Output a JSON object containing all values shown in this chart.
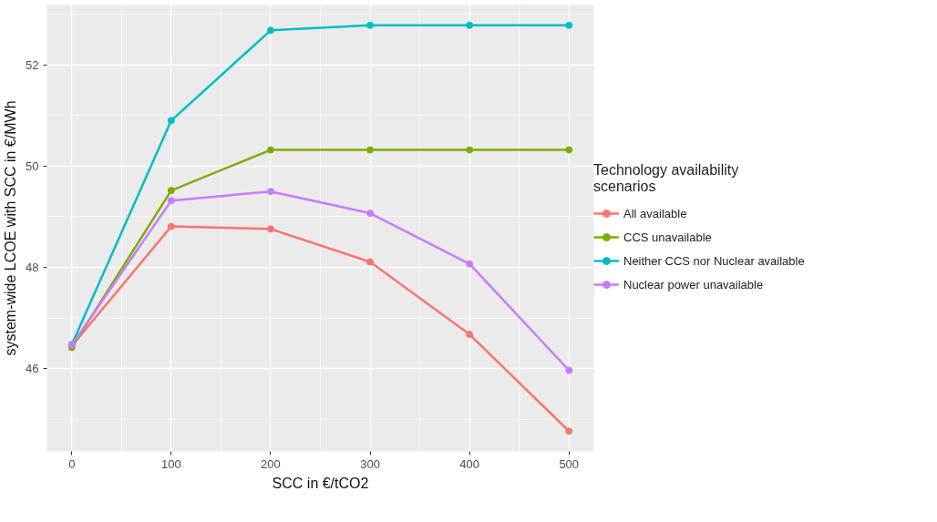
{
  "chart_data": {
    "type": "line",
    "xlabel": "SCC in €/tCO2",
    "ylabel": "system-wide LCOE with SCC in €/MWh",
    "legend_title": "Technology availability\nscenarios",
    "x": [
      0,
      100,
      200,
      300,
      400,
      500
    ],
    "series": [
      {
        "name": "All available",
        "color": "#f8766d",
        "values": [
          46.45,
          48.81,
          48.76,
          48.11,
          46.68,
          44.77
        ]
      },
      {
        "name": "CCS unavailable",
        "color": "#7cae00",
        "values": [
          46.42,
          49.52,
          50.32,
          50.32,
          50.32,
          50.32
        ]
      },
      {
        "name": "Neither CCS nor Nuclear available",
        "color": "#00bfc4",
        "values": [
          46.48,
          50.9,
          52.68,
          52.78,
          52.78,
          52.78
        ]
      },
      {
        "name": "Nuclear power unavailable",
        "color": "#c77cff",
        "values": [
          46.47,
          49.32,
          49.5,
          49.07,
          48.07,
          45.97
        ]
      }
    ],
    "xlim": [
      -25,
      525
    ],
    "ylim": [
      44.37,
      53.18
    ],
    "xticks": [
      0,
      100,
      200,
      300,
      400,
      500
    ],
    "yticks": [
      46,
      48,
      50,
      52
    ],
    "grid": true,
    "legend": "right",
    "marker": "circle",
    "line_style": "solid"
  }
}
